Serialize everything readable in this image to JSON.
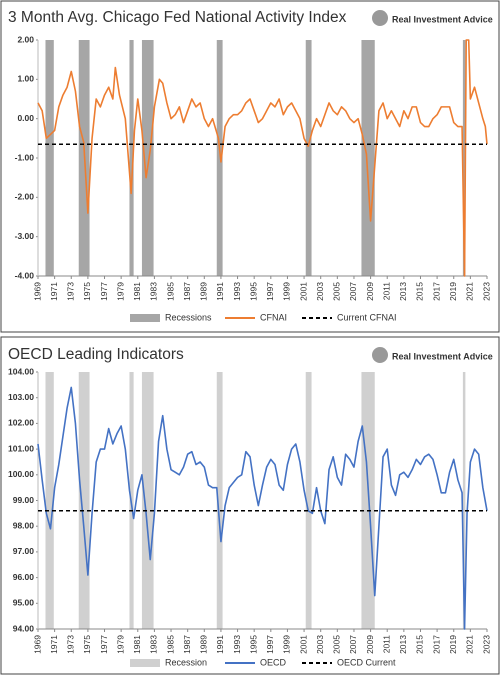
{
  "chart_data": [
    {
      "type": "line",
      "title": "3 Month Avg. Chicago Fed National Activity Index",
      "logo_text": "Real Investment Advice",
      "xlim": [
        1969,
        2023
      ],
      "xticks": [
        1969,
        1971,
        1973,
        1975,
        1977,
        1979,
        1981,
        1983,
        1985,
        1987,
        1989,
        1991,
        1993,
        1995,
        1997,
        1999,
        2001,
        2003,
        2005,
        2007,
        2009,
        2011,
        2013,
        2015,
        2017,
        2019,
        2021,
        2023
      ],
      "ylim": [
        -4,
        2
      ],
      "yticks": [
        {
          "value": -4,
          "label": "-4.00"
        },
        {
          "value": -3,
          "label": "-3.00"
        },
        {
          "value": -2,
          "label": "-2.00"
        },
        {
          "value": -1,
          "label": "-1.00"
        },
        {
          "value": 0,
          "label": "0.00"
        },
        {
          "value": 1,
          "label": "1.00"
        },
        {
          "value": 2,
          "label": "2.00"
        }
      ],
      "recessions": {
        "name": "Recessions",
        "color": "#a6a6a6",
        "ranges": [
          [
            1969.9,
            1970.9
          ],
          [
            1973.9,
            1975.2
          ],
          [
            1980.0,
            1980.5
          ],
          [
            1981.5,
            1982.9
          ],
          [
            1990.5,
            1991.2
          ],
          [
            2001.2,
            2001.9
          ],
          [
            2007.9,
            2009.5
          ],
          [
            2020.1,
            2020.4
          ]
        ]
      },
      "reference_line": {
        "name": "Current CFNAI",
        "value": -0.65,
        "color": "#000000"
      },
      "x": [
        1969.0,
        1969.5,
        1970.0,
        1970.5,
        1971.0,
        1971.5,
        1972.0,
        1972.5,
        1973.0,
        1973.5,
        1974.0,
        1974.5,
        1975.0,
        1975.5,
        1976.0,
        1976.5,
        1977.0,
        1977.5,
        1978.0,
        1978.3,
        1978.8,
        1979.5,
        1980.2,
        1980.6,
        1981.0,
        1981.5,
        1982.0,
        1982.5,
        1983.0,
        1983.6,
        1984.0,
        1984.5,
        1985.0,
        1985.5,
        1986.0,
        1986.5,
        1987.0,
        1987.5,
        1988.0,
        1988.5,
        1989.0,
        1989.5,
        1990.0,
        1990.7,
        1991.0,
        1991.5,
        1992.0,
        1992.5,
        1993.0,
        1993.5,
        1994.0,
        1994.5,
        1995.0,
        1995.5,
        1996.0,
        1996.5,
        1997.0,
        1997.5,
        1998.0,
        1998.5,
        1999.0,
        1999.5,
        2000.0,
        2000.5,
        2001.0,
        2001.5,
        2002.0,
        2002.5,
        2003.0,
        2003.5,
        2004.0,
        2004.5,
        2005.0,
        2005.5,
        2006.0,
        2006.5,
        2007.0,
        2007.5,
        2008.0,
        2008.5,
        2009.0,
        2009.5,
        2010.0,
        2010.5,
        2011.0,
        2011.5,
        2012.0,
        2012.5,
        2013.0,
        2013.5,
        2014.0,
        2014.5,
        2015.0,
        2015.5,
        2016.0,
        2016.5,
        2017.0,
        2017.5,
        2018.0,
        2018.5,
        2019.0,
        2019.5,
        2020.0,
        2020.3,
        2020.5,
        2020.8,
        2021.0,
        2021.5,
        2022.0,
        2022.5,
        2022.8,
        2023.0
      ],
      "series": [
        {
          "name": "CFNAI",
          "color": "#ed7d31",
          "values": [
            0.4,
            0.2,
            -0.5,
            -0.4,
            -0.3,
            0.3,
            0.6,
            0.8,
            1.2,
            0.7,
            -0.2,
            -0.6,
            -2.4,
            -0.5,
            0.5,
            0.3,
            0.6,
            0.8,
            0.5,
            1.3,
            0.6,
            0.0,
            -1.9,
            -0.3,
            0.5,
            -0.3,
            -1.5,
            -0.8,
            0.3,
            1.0,
            0.9,
            0.4,
            0.0,
            0.1,
            0.3,
            -0.1,
            0.2,
            0.5,
            0.3,
            0.4,
            0.0,
            -0.2,
            0.0,
            -0.5,
            -1.1,
            -0.2,
            0.0,
            0.1,
            0.1,
            0.2,
            0.4,
            0.5,
            0.2,
            -0.1,
            0.0,
            0.2,
            0.4,
            0.3,
            0.5,
            0.1,
            0.3,
            0.4,
            0.2,
            0.0,
            -0.5,
            -0.7,
            -0.3,
            0.0,
            -0.2,
            0.1,
            0.4,
            0.2,
            0.1,
            0.3,
            0.2,
            0.0,
            -0.1,
            0.0,
            -0.4,
            -0.9,
            -2.6,
            -1.2,
            0.2,
            0.4,
            0.0,
            0.2,
            0.0,
            -0.2,
            0.2,
            0.0,
            0.3,
            0.3,
            -0.1,
            -0.2,
            -0.2,
            0.0,
            0.1,
            0.3,
            0.3,
            0.3,
            -0.1,
            -0.2,
            -0.2,
            -4.0,
            2.0,
            2.0,
            0.5,
            0.8,
            0.4,
            0.0,
            -0.2,
            -0.65
          ]
        }
      ]
    },
    {
      "type": "line",
      "title": "OECD Leading Indicators",
      "logo_text": "Real Investment Advice",
      "xlim": [
        1969,
        2023
      ],
      "xticks": [
        1969,
        1971,
        1973,
        1975,
        1977,
        1979,
        1981,
        1983,
        1985,
        1987,
        1989,
        1991,
        1993,
        1995,
        1997,
        1999,
        2001,
        2003,
        2005,
        2007,
        2009,
        2011,
        2013,
        2015,
        2017,
        2019,
        2021,
        2023
      ],
      "ylim": [
        94,
        104
      ],
      "yticks": [
        {
          "value": 94,
          "label": "94.00"
        },
        {
          "value": 95,
          "label": "95.00"
        },
        {
          "value": 96,
          "label": "96.00"
        },
        {
          "value": 97,
          "label": "97.00"
        },
        {
          "value": 98,
          "label": "98.00"
        },
        {
          "value": 99,
          "label": "99.00"
        },
        {
          "value": 100,
          "label": "100.00"
        },
        {
          "value": 101,
          "label": "101.00"
        },
        {
          "value": 102,
          "label": "102.00"
        },
        {
          "value": 103,
          "label": "103.00"
        },
        {
          "value": 104,
          "label": "104.00"
        }
      ],
      "recessions": {
        "name": "Recession",
        "color": "#d0d0d0",
        "ranges": [
          [
            1969.9,
            1970.9
          ],
          [
            1973.9,
            1975.2
          ],
          [
            1980.0,
            1980.5
          ],
          [
            1981.5,
            1982.9
          ],
          [
            1990.5,
            1991.2
          ],
          [
            2001.2,
            2001.9
          ],
          [
            2007.9,
            2009.5
          ],
          [
            2020.1,
            2020.4
          ]
        ]
      },
      "reference_line": {
        "name": "OECD Current",
        "value": 98.6,
        "color": "#000000"
      },
      "x": [
        1969.0,
        1969.5,
        1970.0,
        1970.5,
        1971.0,
        1971.5,
        1972.0,
        1972.5,
        1973.0,
        1973.5,
        1974.0,
        1974.5,
        1975.0,
        1975.5,
        1976.0,
        1976.5,
        1977.0,
        1977.5,
        1978.0,
        1978.5,
        1979.0,
        1979.5,
        1980.0,
        1980.5,
        1981.0,
        1981.5,
        1982.0,
        1982.5,
        1983.0,
        1983.5,
        1984.0,
        1984.5,
        1985.0,
        1985.5,
        1986.0,
        1986.5,
        1987.0,
        1987.5,
        1988.0,
        1988.5,
        1989.0,
        1989.5,
        1990.0,
        1990.5,
        1991.0,
        1991.5,
        1992.0,
        1992.5,
        1993.0,
        1993.5,
        1994.0,
        1994.5,
        1995.0,
        1995.5,
        1996.0,
        1996.5,
        1997.0,
        1997.5,
        1998.0,
        1998.5,
        1999.0,
        1999.5,
        2000.0,
        2000.5,
        2001.0,
        2001.5,
        2002.0,
        2002.5,
        2003.0,
        2003.5,
        2004.0,
        2004.5,
        2005.0,
        2005.5,
        2006.0,
        2006.5,
        2007.0,
        2007.5,
        2008.0,
        2008.5,
        2009.0,
        2009.5,
        2010.0,
        2010.5,
        2011.0,
        2011.5,
        2012.0,
        2012.5,
        2013.0,
        2013.5,
        2014.0,
        2014.5,
        2015.0,
        2015.5,
        2016.0,
        2016.5,
        2017.0,
        2017.5,
        2018.0,
        2018.5,
        2019.0,
        2019.5,
        2020.0,
        2020.3,
        2020.6,
        2021.0,
        2021.5,
        2022.0,
        2022.5,
        2023.0
      ],
      "series": [
        {
          "name": "OECD",
          "color": "#4472c4",
          "values": [
            101.2,
            99.8,
            98.5,
            97.9,
            99.5,
            100.4,
            101.5,
            102.6,
            103.4,
            102.0,
            99.8,
            98.0,
            96.1,
            98.5,
            100.5,
            101.0,
            101.0,
            101.8,
            101.2,
            101.6,
            101.9,
            101.0,
            99.4,
            98.3,
            99.4,
            100.0,
            98.5,
            96.7,
            98.5,
            101.3,
            102.3,
            101.0,
            100.2,
            100.1,
            100.0,
            100.3,
            100.8,
            100.9,
            100.4,
            100.5,
            100.3,
            99.6,
            99.5,
            99.5,
            97.4,
            98.8,
            99.5,
            99.7,
            99.9,
            100.0,
            100.9,
            100.7,
            99.6,
            98.8,
            99.6,
            100.3,
            100.6,
            100.4,
            99.6,
            99.4,
            100.4,
            101.0,
            101.2,
            100.5,
            99.4,
            98.6,
            98.5,
            99.5,
            98.6,
            98.1,
            100.2,
            100.7,
            99.9,
            99.6,
            100.8,
            100.6,
            100.3,
            101.3,
            101.9,
            100.5,
            98.0,
            95.3,
            98.0,
            100.7,
            101.0,
            99.6,
            99.2,
            100.0,
            100.1,
            99.9,
            100.2,
            100.6,
            100.4,
            100.7,
            100.8,
            100.6,
            100.0,
            99.3,
            99.3,
            100.1,
            100.6,
            99.8,
            99.3,
            94.0,
            98.5,
            100.5,
            101.0,
            100.8,
            99.5,
            98.6
          ]
        }
      ]
    }
  ]
}
